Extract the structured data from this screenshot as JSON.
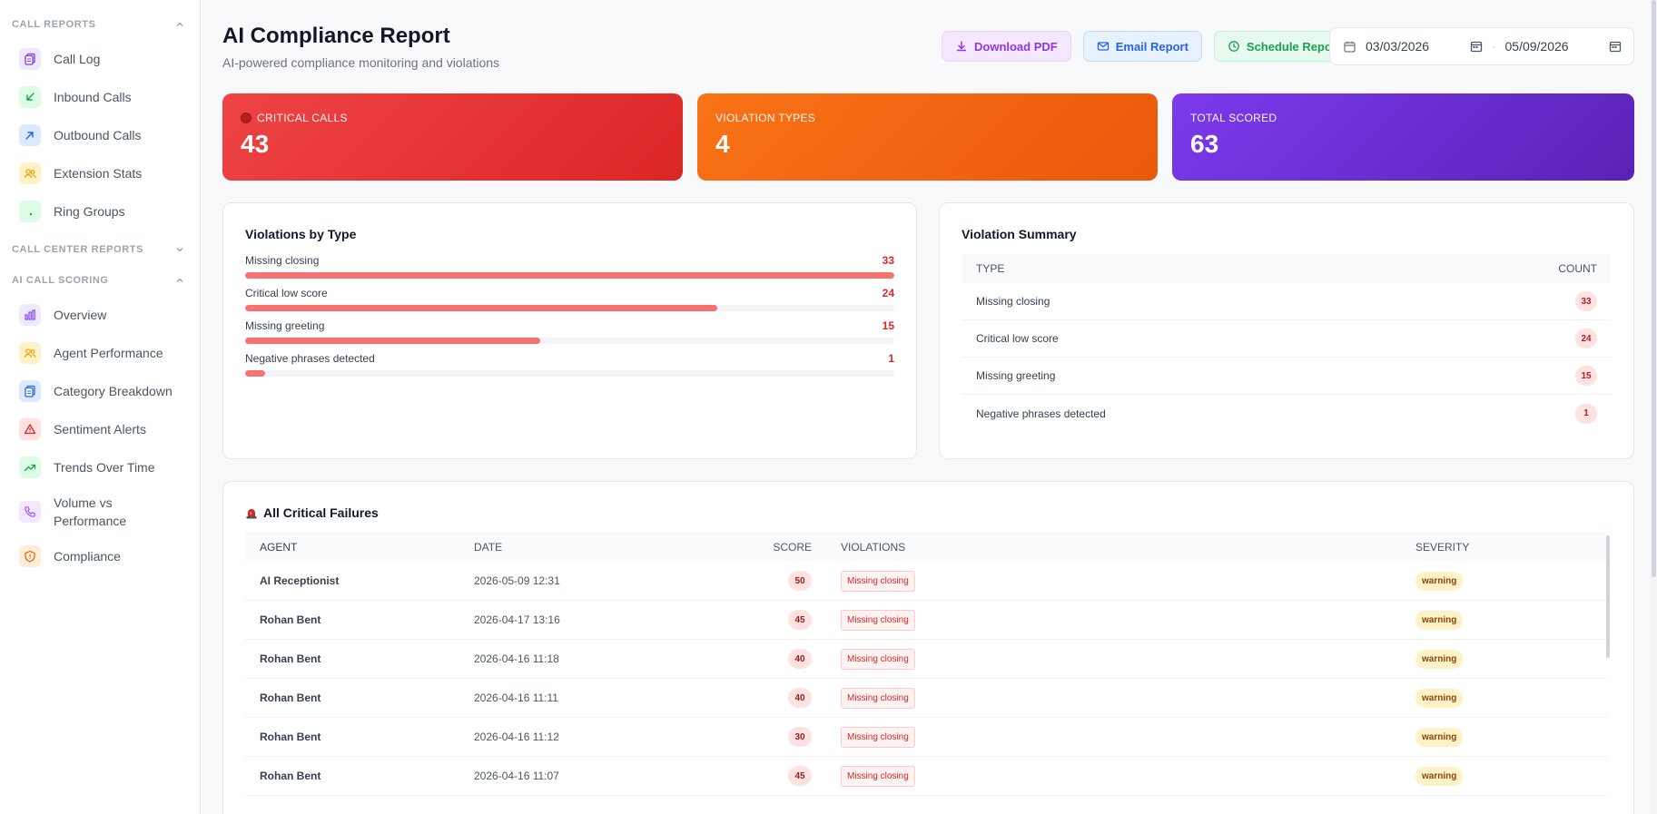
{
  "sidebar": {
    "sections": [
      {
        "title": "CALL REPORTS",
        "expanded": true
      },
      {
        "title": "CALL CENTER REPORTS",
        "expanded": false
      },
      {
        "title": "AI CALL SCORING",
        "expanded": true
      }
    ],
    "call_reports": [
      {
        "label": "Call Log",
        "icon": "document-copy-icon",
        "color": "#7c3aed",
        "bg": "#ede9fe"
      },
      {
        "label": "Inbound Calls",
        "icon": "arrow-down-left-icon",
        "color": "#16a34a",
        "bg": "#dcfce7"
      },
      {
        "label": "Outbound Calls",
        "icon": "arrow-up-right-icon",
        "color": "#2563eb",
        "bg": "#dbeafe"
      },
      {
        "label": "Extension Stats",
        "icon": "users-icon",
        "color": "#f59e0b",
        "bg": "#fef3c7"
      },
      {
        "label": "Ring Groups",
        "icon": "dot-icon",
        "color": "#16a34a",
        "bg": "#dcfce7"
      }
    ],
    "ai_scoring": [
      {
        "label": "Overview",
        "icon": "bar-chart-icon",
        "color": "#7c3aed",
        "bg": "#ede9fe"
      },
      {
        "label": "Agent Performance",
        "icon": "users-icon",
        "color": "#f59e0b",
        "bg": "#fef3c7"
      },
      {
        "label": "Category Breakdown",
        "icon": "document-copy-icon",
        "color": "#2563eb",
        "bg": "#dbeafe"
      },
      {
        "label": "Sentiment Alerts",
        "icon": "alert-triangle-icon",
        "color": "#dc2626",
        "bg": "#fee2e2"
      },
      {
        "label": "Trends Over Time",
        "icon": "trending-up-icon",
        "color": "#16a34a",
        "bg": "#dcfce7"
      },
      {
        "label": "Volume vs Performance",
        "icon": "phone-icon",
        "color": "#a855f7",
        "bg": "#f3e8ff"
      },
      {
        "label": "Compliance",
        "icon": "shield-icon",
        "color": "#ea580c",
        "bg": "#ffedd5"
      }
    ]
  },
  "header": {
    "title": "AI Compliance Report",
    "subtitle": "AI-powered compliance monitoring and violations",
    "download_pdf": "Download PDF",
    "email_report": "Email Report",
    "schedule_report": "Schedule Report",
    "date_from": "03/03/2026",
    "date_to": "05/09/2026",
    "date_separator": "-"
  },
  "stats": {
    "critical_calls": {
      "label": "CRITICAL CALLS",
      "value": "43"
    },
    "violation_types": {
      "label": "VIOLATION TYPES",
      "value": "4"
    },
    "total_scored": {
      "label": "TOTAL SCORED",
      "value": "63"
    }
  },
  "violations_by_type": {
    "title": "Violations by Type",
    "max": 33,
    "items": [
      {
        "label": "Missing closing",
        "count": 33
      },
      {
        "label": "Critical low score",
        "count": 24
      },
      {
        "label": "Missing greeting",
        "count": 15
      },
      {
        "label": "Negative phrases detected",
        "count": 1
      }
    ]
  },
  "violation_summary": {
    "title": "Violation Summary",
    "col_type": "TYPE",
    "col_count": "COUNT",
    "rows": [
      {
        "type": "Missing closing",
        "count": "33"
      },
      {
        "type": "Critical low score",
        "count": "24"
      },
      {
        "type": "Missing greeting",
        "count": "15"
      },
      {
        "type": "Negative phrases detected",
        "count": "1"
      }
    ]
  },
  "critical_failures": {
    "title": "All Critical Failures",
    "columns": {
      "agent": "AGENT",
      "date": "DATE",
      "score": "SCORE",
      "violations": "VIOLATIONS",
      "severity": "SEVERITY"
    },
    "rows": [
      {
        "agent": "AI Receptionist",
        "date": "2026-05-09 12:31",
        "score": "50",
        "violation": "Missing closing",
        "severity": "warning"
      },
      {
        "agent": "Rohan Bent",
        "date": "2026-04-17 13:16",
        "score": "45",
        "violation": "Missing closing",
        "severity": "warning"
      },
      {
        "agent": "Rohan Bent",
        "date": "2026-04-16 11:18",
        "score": "40",
        "violation": "Missing closing",
        "severity": "warning"
      },
      {
        "agent": "Rohan Bent",
        "date": "2026-04-16 11:11",
        "score": "40",
        "violation": "Missing closing",
        "severity": "warning"
      },
      {
        "agent": "Rohan Bent",
        "date": "2026-04-16 11:12",
        "score": "30",
        "violation": "Missing closing",
        "severity": "warning"
      },
      {
        "agent": "Rohan Bent",
        "date": "2026-04-16 11:07",
        "score": "45",
        "violation": "Missing closing",
        "severity": "warning"
      }
    ]
  }
}
